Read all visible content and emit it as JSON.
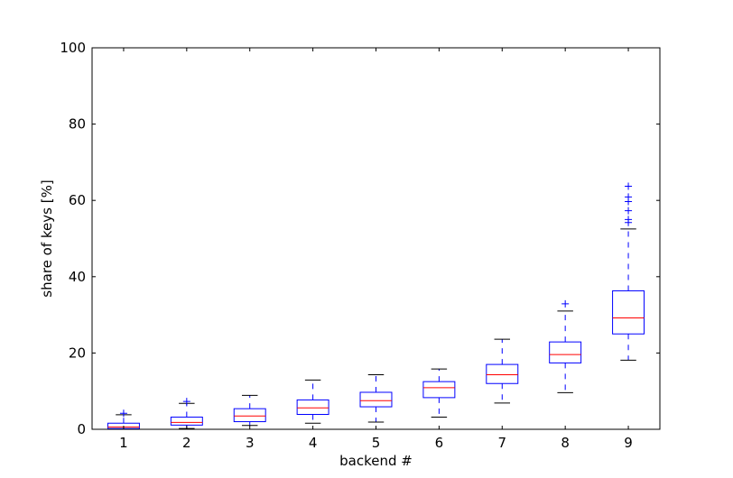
{
  "chart_data": {
    "type": "boxplot",
    "title": "",
    "xlabel": "backend #",
    "ylabel": "share of keys [%]",
    "xlim": [
      0.5,
      9.5
    ],
    "ylim": [
      0,
      100
    ],
    "xticks": [
      "1",
      "2",
      "3",
      "4",
      "5",
      "6",
      "7",
      "8",
      "9"
    ],
    "yticks": [
      "0",
      "20",
      "40",
      "60",
      "80",
      "100"
    ],
    "grid": false,
    "colors": {
      "box": "#0000ff",
      "median": "#ff0000",
      "cap": "#000000",
      "flier": "#0000ff"
    },
    "boxes": [
      {
        "category": "1",
        "whisker_low": 0.0,
        "q1": 0.2,
        "median": 0.6,
        "q3": 1.6,
        "whisker_high": 3.8,
        "fliers": [
          4.2
        ]
      },
      {
        "category": "2",
        "whisker_low": 0.2,
        "q1": 1.1,
        "median": 1.8,
        "q3": 3.2,
        "whisker_high": 6.8,
        "fliers": [
          7.3
        ]
      },
      {
        "category": "3",
        "whisker_low": 1.0,
        "q1": 2.0,
        "median": 3.5,
        "q3": 5.4,
        "whisker_high": 8.9,
        "fliers": []
      },
      {
        "category": "4",
        "whisker_low": 1.6,
        "q1": 3.9,
        "median": 5.6,
        "q3": 7.7,
        "whisker_high": 12.9,
        "fliers": []
      },
      {
        "category": "5",
        "whisker_low": 1.9,
        "q1": 5.9,
        "median": 7.5,
        "q3": 9.7,
        "whisker_high": 14.3,
        "fliers": []
      },
      {
        "category": "6",
        "whisker_low": 3.2,
        "q1": 8.3,
        "median": 10.9,
        "q3": 12.5,
        "whisker_high": 15.8,
        "fliers": []
      },
      {
        "category": "7",
        "whisker_low": 6.9,
        "q1": 12.0,
        "median": 14.3,
        "q3": 17.0,
        "whisker_high": 23.6,
        "fliers": []
      },
      {
        "category": "8",
        "whisker_low": 9.6,
        "q1": 17.4,
        "median": 19.6,
        "q3": 22.9,
        "whisker_high": 31.0,
        "fliers": [
          32.9
        ]
      },
      {
        "category": "9",
        "whisker_low": 18.1,
        "q1": 25.0,
        "median": 29.2,
        "q3": 36.3,
        "whisker_high": 52.5,
        "fliers": [
          54.2,
          55.0,
          57.3,
          59.7,
          60.9,
          63.7
        ]
      }
    ]
  }
}
